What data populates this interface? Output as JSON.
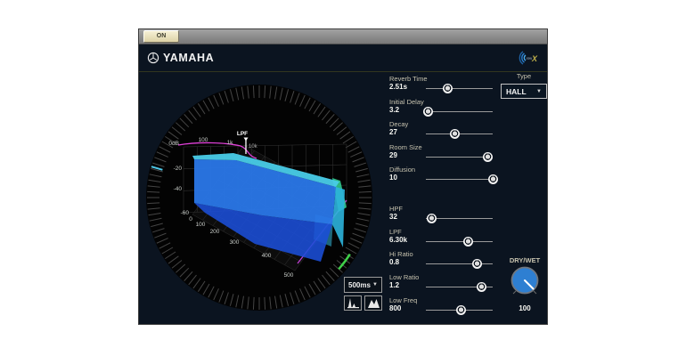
{
  "titlebar": {
    "on_label": "ON"
  },
  "header": {
    "brand": "YAMAHA",
    "logo_rev": "rev",
    "logo_x": "X"
  },
  "display": {
    "db_axis": [
      "0dB",
      "-20",
      "-40",
      "-60"
    ],
    "freq_axis": {
      "f100": "100",
      "f1k": "1k",
      "lpf": "LPF",
      "f10k": "10k"
    },
    "time_axis": [
      "0",
      "100",
      "200",
      "300",
      "400",
      "500"
    ],
    "range_dropdown": {
      "value": "500ms",
      "arrow": "▼"
    }
  },
  "controls": {
    "type": {
      "label": "Type",
      "value": "HALL",
      "arrow": "▼"
    },
    "sliders": [
      {
        "label": "Reverb Time",
        "value": "2.51s",
        "percent": 33
      },
      {
        "label": "Initial Delay",
        "value": "3.2",
        "percent": 3
      },
      {
        "label": "Decay",
        "value": "27",
        "percent": 43
      },
      {
        "label": "Room Size",
        "value": "29",
        "percent": 93
      },
      {
        "label": "Diffusion",
        "value": "10",
        "percent": 100
      },
      {
        "label": "HPF",
        "value": "32",
        "percent": 8
      },
      {
        "label": "LPF",
        "value": "6.30k",
        "percent": 63
      },
      {
        "label": "Hi Ratio",
        "value": "0.8",
        "percent": 77
      },
      {
        "label": "Low Ratio",
        "value": "1.2",
        "percent": 84
      },
      {
        "label": "Low Freq",
        "value": "800",
        "percent": 53
      }
    ],
    "dry_wet": {
      "label": "DRY/WET",
      "value": "100"
    }
  },
  "colors": {
    "body_bg": "#0b1420",
    "accent_blue": "#2a77e8",
    "surface_cyan": "#49cce8",
    "surface_green": "#30ca8e",
    "spectrum_magenta": "#d840d8",
    "drywet_knob": "#2e7fd2"
  }
}
